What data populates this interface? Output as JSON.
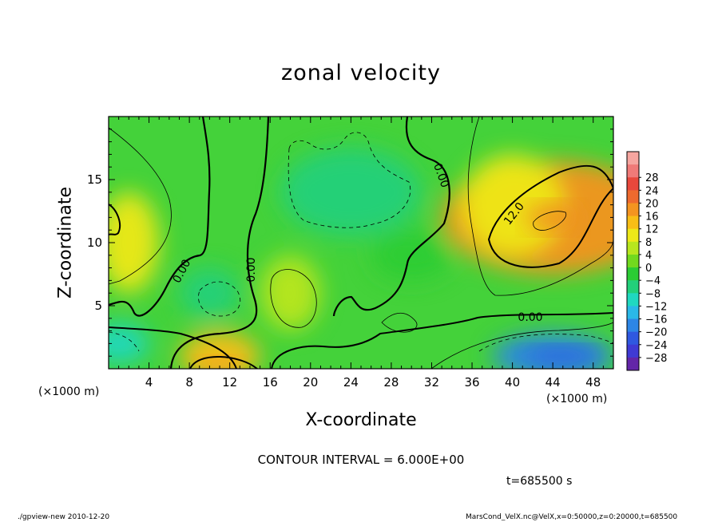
{
  "chart_data": {
    "type": "heatmap",
    "title": "zonal velocity",
    "xlabel": "X-coordinate",
    "ylabel": "Z-coordinate",
    "x_unit_label": "(×1000 m)",
    "xlim": [
      0,
      50
    ],
    "ylim": [
      0,
      20
    ],
    "x_ticks": [
      4,
      8,
      12,
      16,
      20,
      24,
      28,
      32,
      36,
      40,
      44,
      48
    ],
    "y_ticks": [
      5,
      10,
      15
    ],
    "colorbar": {
      "levels": [
        28,
        24,
        20,
        16,
        12,
        8,
        4,
        0,
        -4,
        -8,
        -12,
        -16,
        -20,
        -24,
        -28
      ],
      "colors": [
        "#e8483c",
        "#ee6a2e",
        "#f49420",
        "#f8be16",
        "#eee818",
        "#b8e61e",
        "#72d91e",
        "#2bcc34",
        "#22d07a",
        "#20d8c0",
        "#2ab8e8",
        "#2d86e6",
        "#2f58e0",
        "#3f3ad4",
        "#6326a8"
      ],
      "extra_colors": [
        "#f6a6a0",
        "#f07a78"
      ]
    },
    "contour_interval": "CONTOUR INTERVAL = 6.000E+00",
    "contour_labels": [
      "0.00",
      "0.00",
      "0.00",
      "0.00",
      "12.0"
    ],
    "field_features": [
      {
        "x": 44,
        "z": 12,
        "value": 18
      },
      {
        "x": 40,
        "z": 13,
        "value": 12
      },
      {
        "x": 2,
        "z": 10,
        "value": 10
      },
      {
        "x": 11,
        "z": 1,
        "value": 15
      },
      {
        "x": 18,
        "z": 6,
        "value": 8
      },
      {
        "x": 24,
        "z": 14,
        "value": -6
      },
      {
        "x": 10,
        "z": 6,
        "value": -6
      },
      {
        "x": 44,
        "z": 1,
        "value": -15
      },
      {
        "x": 1,
        "z": 2,
        "value": -8
      },
      {
        "x": 30,
        "z": 9,
        "value": 0
      }
    ]
  },
  "labels": {
    "x_unit_left": "(×1000 m)",
    "x_unit_right": "(×1000 m)",
    "timestamp": "t=685500 s",
    "footer_left": "./gpview-new   2010-12-20",
    "footer_right": "MarsCond_VelX.nc@VelX,x=0:50000,z=0:20000,t=685500"
  }
}
